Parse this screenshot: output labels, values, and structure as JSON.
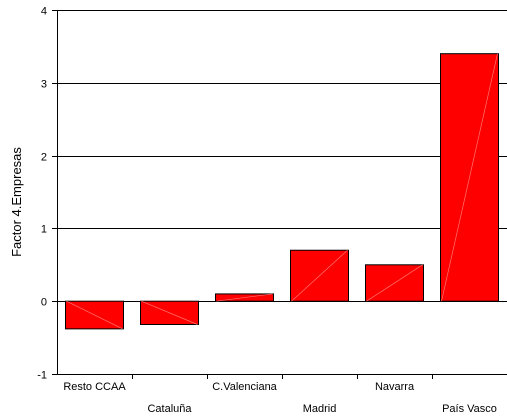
{
  "chart_data": {
    "type": "bar",
    "title": "",
    "xlabel": "",
    "ylabel": "Factor 4.Empresas",
    "categories": [
      "Resto CCAA",
      "Cataluña",
      "C.Valenciana",
      "Madrid",
      "Navarra",
      "País Vasco"
    ],
    "values": [
      -0.38,
      -0.32,
      0.1,
      0.7,
      0.5,
      3.4
    ],
    "ylim": [
      -1,
      4
    ],
    "yticks": [
      "-1",
      "0",
      "1",
      "2",
      "3",
      "4"
    ],
    "grid": "horizontal",
    "legend": "none",
    "bar_color": "#ff0000",
    "bar_border_color": "#000000"
  }
}
